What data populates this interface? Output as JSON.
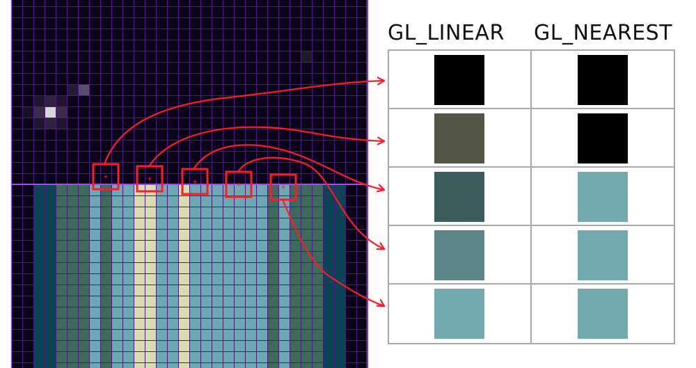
{
  "headers": {
    "linear": "GL_LINEAR",
    "nearest": "GL_NEAREST"
  },
  "colors": {
    "grid_line": "#4a1a82",
    "divider": "#9b50e0",
    "dark_bg": "#0b0319",
    "marker": "#ff1a2a",
    "arrow": "#ff1a2a",
    "table_border": "#a8a8a8"
  },
  "texture": {
    "cols": 32,
    "top_rows": 16,
    "bottom_rows": 16,
    "glow_pixels": [
      {
        "col": 3,
        "row": 9,
        "color": "#d8d8d8"
      },
      {
        "col": 2,
        "row": 9,
        "color": "#3a2c4a"
      },
      {
        "col": 4,
        "row": 9,
        "color": "#3a2c4a"
      },
      {
        "col": 3,
        "row": 8,
        "color": "#2e2240"
      },
      {
        "col": 3,
        "row": 10,
        "color": "#2e2240"
      },
      {
        "col": 2,
        "row": 8,
        "color": "#1f1530"
      },
      {
        "col": 4,
        "row": 8,
        "color": "#1f1530"
      },
      {
        "col": 2,
        "row": 10,
        "color": "#1f1530"
      },
      {
        "col": 4,
        "row": 10,
        "color": "#1f1530"
      },
      {
        "col": 6,
        "row": 7,
        "color": "#5c4a70"
      },
      {
        "col": 5,
        "row": 7,
        "color": "#241a36"
      },
      {
        "col": 1,
        "row": 9,
        "color": "#170f25"
      },
      {
        "col": 26,
        "row": 4,
        "color": "#1e1a24"
      }
    ],
    "stripes": [
      {
        "from": 0,
        "to": 2,
        "color": "#0b0319"
      },
      {
        "from": 2,
        "to": 4,
        "color": "#0a4455"
      },
      {
        "from": 4,
        "to": 7,
        "color": "#3c6b5e"
      },
      {
        "from": 7,
        "to": 8,
        "color": "#6fa8b0"
      },
      {
        "from": 8,
        "to": 9,
        "color": "#3c6b5e"
      },
      {
        "from": 9,
        "to": 11,
        "color": "#6fa8b0"
      },
      {
        "from": 11,
        "to": 13,
        "color": "#d8dcb2"
      },
      {
        "from": 13,
        "to": 15,
        "color": "#6fa8b0"
      },
      {
        "from": 15,
        "to": 16,
        "color": "#d8dcb2"
      },
      {
        "from": 16,
        "to": 23,
        "color": "#6fa8b0"
      },
      {
        "from": 23,
        "to": 24,
        "color": "#3c6b5e"
      },
      {
        "from": 24,
        "to": 25,
        "color": "#6fa8b0"
      },
      {
        "from": 25,
        "to": 28,
        "color": "#3c6b5e"
      },
      {
        "from": 28,
        "to": 30,
        "color": "#0a4455"
      },
      {
        "from": 30,
        "to": 32,
        "color": "#0b0319"
      }
    ]
  },
  "samples": [
    {
      "linear": "#000000",
      "nearest": "#000000"
    },
    {
      "linear": "#525444",
      "nearest": "#000000"
    },
    {
      "linear": "#3d5c5e",
      "nearest": "#72aab0"
    },
    {
      "linear": "#5b8586",
      "nearest": "#72aab0"
    },
    {
      "linear": "#72aab0",
      "nearest": "#72aab0"
    }
  ]
}
